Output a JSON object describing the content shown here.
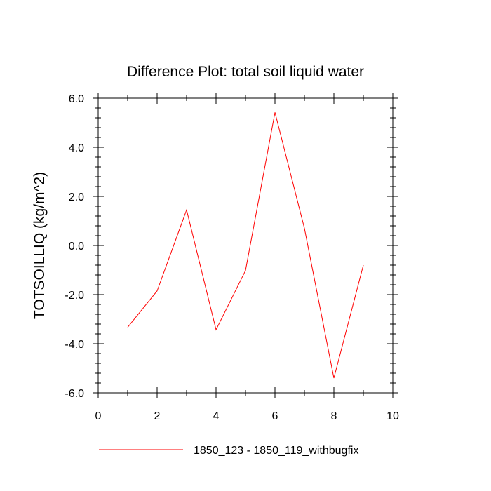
{
  "chart_data": {
    "type": "line",
    "title": "Difference Plot: total soil liquid water",
    "xlabel": "",
    "ylabel": "TOTSOILLIQ  (kg/m^2)",
    "xlim": [
      0,
      10
    ],
    "ylim": [
      -6.0,
      6.0
    ],
    "x_ticks": [
      0,
      2,
      4,
      6,
      8,
      10
    ],
    "x_tick_labels": [
      "0",
      "2",
      "4",
      "6",
      "8",
      "10"
    ],
    "x_minor_step": 1,
    "y_ticks": [
      -6.0,
      -4.0,
      -2.0,
      0.0,
      2.0,
      4.0,
      6.0
    ],
    "y_tick_labels": [
      "-6.0",
      "-4.0",
      "-2.0",
      "0.0",
      "2.0",
      "4.0",
      "6.0"
    ],
    "y_minor_step": 0.4,
    "grid": false,
    "legend_position": "bottom",
    "series": [
      {
        "name": "1850_123 - 1850_119_withbugfix",
        "color": "#ff0000",
        "x": [
          1,
          2,
          3,
          4,
          5,
          6,
          7,
          8,
          9
        ],
        "values": [
          -3.33,
          -1.85,
          1.45,
          -3.43,
          -1.02,
          5.42,
          0.7,
          -5.4,
          -0.8
        ]
      }
    ]
  }
}
